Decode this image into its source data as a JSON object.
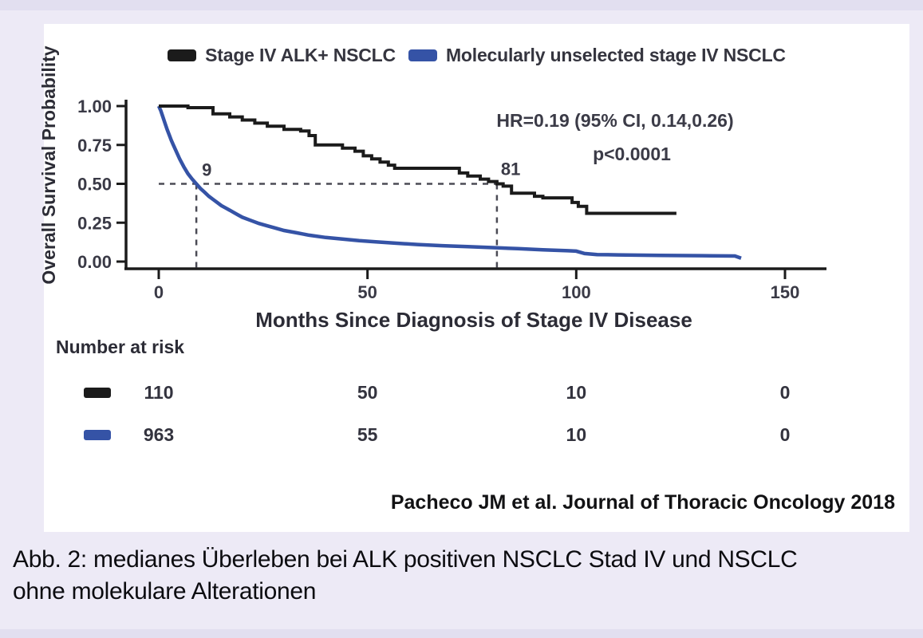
{
  "page": {
    "background": "#edeaf6",
    "strip_color": "#e2dff0"
  },
  "figure": {
    "citation": "Pacheco JM et al. Journal of Thoracic Oncology 2018",
    "caption_line1": "Abb. 2: medianes Überleben bei ALK positiven NSCLC Stad IV und NSCLC",
    "caption_line2": "ohne molekulare Alterationen"
  },
  "chart_data": {
    "type": "line",
    "subtype": "kaplan_meier_step",
    "title": "",
    "xlabel": "Months Since Diagnosis of Stage IV Disease",
    "ylabel": "Overall Survival Probability",
    "xlim": [
      0,
      157
    ],
    "ylim": [
      0,
      1
    ],
    "grid": false,
    "legend_position": "top",
    "x_ticks": [
      "0",
      "50",
      "100",
      "150"
    ],
    "x_tick_values": [
      0,
      50,
      100,
      150
    ],
    "y_ticks": [
      "0.00",
      "0.25",
      "0.50",
      "0.75",
      "1.00"
    ],
    "y_tick_values": [
      0,
      0.25,
      0.5,
      0.75,
      1
    ],
    "legend": [
      {
        "label": "Stage IV ALK+ NSCLC",
        "color": "#1b1b1b"
      },
      {
        "label": "Molecularly unselected stage IV NSCLC",
        "color": "#3553a6"
      }
    ],
    "annotations": {
      "hr_text": "HR=0.19 (95% CI, 0.14,0.26)",
      "p_text": "p<0.0001",
      "median_survival_level": 0.5,
      "medians": [
        {
          "label": "9",
          "months": 9
        },
        {
          "label": "81",
          "months": 81
        }
      ]
    },
    "series": [
      {
        "name": "Molecularly unselected stage IV NSCLC",
        "color": "#3553a6",
        "median_months": 9,
        "points": [
          [
            0,
            1.0
          ],
          [
            0.5,
            0.97
          ],
          [
            1,
            0.93
          ],
          [
            1.5,
            0.89
          ],
          [
            2,
            0.85
          ],
          [
            2.5,
            0.815
          ],
          [
            3,
            0.78
          ],
          [
            3.5,
            0.75
          ],
          [
            4,
            0.72
          ],
          [
            5,
            0.66
          ],
          [
            6,
            0.61
          ],
          [
            7,
            0.565
          ],
          [
            8,
            0.53
          ],
          [
            9,
            0.5
          ],
          [
            10,
            0.47
          ],
          [
            11,
            0.445
          ],
          [
            12,
            0.42
          ],
          [
            13,
            0.4
          ],
          [
            14,
            0.38
          ],
          [
            15,
            0.36
          ],
          [
            16,
            0.345
          ],
          [
            17,
            0.33
          ],
          [
            18,
            0.315
          ],
          [
            19,
            0.3
          ],
          [
            20,
            0.285
          ],
          [
            22,
            0.265
          ],
          [
            24,
            0.245
          ],
          [
            26,
            0.23
          ],
          [
            28,
            0.215
          ],
          [
            30,
            0.2
          ],
          [
            33,
            0.185
          ],
          [
            36,
            0.17
          ],
          [
            40,
            0.155
          ],
          [
            44,
            0.145
          ],
          [
            48,
            0.135
          ],
          [
            52,
            0.127
          ],
          [
            57,
            0.118
          ],
          [
            62,
            0.11
          ],
          [
            68,
            0.102
          ],
          [
            74,
            0.096
          ],
          [
            80,
            0.09
          ],
          [
            86,
            0.083
          ],
          [
            92,
            0.076
          ],
          [
            98,
            0.07
          ],
          [
            100,
            0.067
          ],
          [
            102,
            0.052
          ],
          [
            105,
            0.045
          ],
          [
            110,
            0.043
          ],
          [
            120,
            0.04
          ],
          [
            130,
            0.038
          ],
          [
            138,
            0.036
          ],
          [
            139.5,
            0.022
          ]
        ]
      },
      {
        "name": "Stage IV ALK+ NSCLC",
        "color": "#1b1b1b",
        "median_months": 81,
        "points": [
          [
            0,
            1.0
          ],
          [
            7,
            1.0
          ],
          [
            7,
            0.99
          ],
          [
            13,
            0.99
          ],
          [
            13,
            0.95
          ],
          [
            17,
            0.95
          ],
          [
            17,
            0.93
          ],
          [
            20,
            0.93
          ],
          [
            20,
            0.91
          ],
          [
            23,
            0.91
          ],
          [
            23,
            0.89
          ],
          [
            26,
            0.89
          ],
          [
            26,
            0.87
          ],
          [
            30,
            0.87
          ],
          [
            30,
            0.85
          ],
          [
            34,
            0.85
          ],
          [
            34,
            0.84
          ],
          [
            36,
            0.84
          ],
          [
            36,
            0.81
          ],
          [
            37.5,
            0.81
          ],
          [
            37.5,
            0.75
          ],
          [
            44,
            0.75
          ],
          [
            44,
            0.73
          ],
          [
            47,
            0.73
          ],
          [
            47,
            0.71
          ],
          [
            49,
            0.71
          ],
          [
            49,
            0.68
          ],
          [
            51,
            0.68
          ],
          [
            51,
            0.66
          ],
          [
            53,
            0.66
          ],
          [
            53,
            0.64
          ],
          [
            55,
            0.64
          ],
          [
            55,
            0.62
          ],
          [
            56.5,
            0.62
          ],
          [
            56.5,
            0.6
          ],
          [
            72,
            0.6
          ],
          [
            72,
            0.57
          ],
          [
            74,
            0.57
          ],
          [
            74,
            0.55
          ],
          [
            77,
            0.55
          ],
          [
            77,
            0.53
          ],
          [
            79,
            0.53
          ],
          [
            79,
            0.515
          ],
          [
            81,
            0.515
          ],
          [
            81,
            0.5
          ],
          [
            82.5,
            0.5
          ],
          [
            82.5,
            0.485
          ],
          [
            84.5,
            0.485
          ],
          [
            84.5,
            0.44
          ],
          [
            90,
            0.44
          ],
          [
            90,
            0.42
          ],
          [
            92,
            0.42
          ],
          [
            92,
            0.41
          ],
          [
            99,
            0.41
          ],
          [
            99,
            0.38
          ],
          [
            100.5,
            0.38
          ],
          [
            100.5,
            0.355
          ],
          [
            102.5,
            0.355
          ],
          [
            102.5,
            0.31
          ],
          [
            124,
            0.31
          ]
        ]
      }
    ],
    "number_at_risk": {
      "label": "Number at risk",
      "time_points": [
        0,
        50,
        100,
        150
      ],
      "rows": [
        {
          "series": "Stage IV ALK+ NSCLC",
          "color": "#1b1b1b",
          "values": [
            "110",
            "50",
            "10",
            "0"
          ]
        },
        {
          "series": "Molecularly unselected stage IV NSCLC",
          "color": "#3553a6",
          "values": [
            "963",
            "55",
            "10",
            "0"
          ]
        }
      ]
    }
  }
}
